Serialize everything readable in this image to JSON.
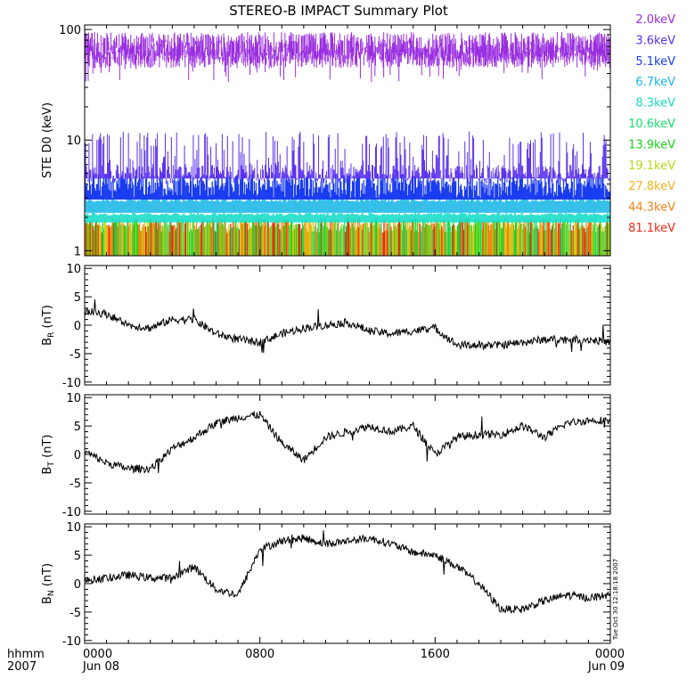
{
  "title": "STEREO-B IMPACT Summary Plot",
  "timestamp": "Tue Oct 30 12:18:18 2007",
  "xaxis": {
    "corner_label_1": "hhmm",
    "corner_label_2": "2007",
    "ticks": [
      {
        "hour": 0,
        "label": "0000",
        "date": "Jun 08"
      },
      {
        "hour": 8,
        "label": "0800",
        "date": ""
      },
      {
        "hour": 16,
        "label": "1600",
        "date": ""
      },
      {
        "hour": 24,
        "label": "0000",
        "date": "Jun 09"
      }
    ],
    "range_hours": [
      0,
      24
    ]
  },
  "chart_data": [
    {
      "type": "line",
      "name": "ste-d0",
      "ylabel": "STE D0 (keV)",
      "yscale": "log",
      "ylim": [
        0.9,
        110
      ],
      "ytick_labels": [
        "1",
        "10",
        "100"
      ],
      "ytick_values": [
        1,
        10,
        100
      ],
      "legend_placement": "right",
      "series": [
        {
          "name": "2.0keV",
          "color": "#9a2fe0",
          "level_range": [
            40,
            100
          ]
        },
        {
          "name": "3.6keV",
          "color": "#5a2ff0",
          "level_range": [
            4,
            12
          ]
        },
        {
          "name": "5.1keV",
          "color": "#1a3cf0",
          "level_range": [
            3,
            5
          ]
        },
        {
          "name": "6.7keV",
          "color": "#17b6e6",
          "level_range": [
            2.2,
            3
          ]
        },
        {
          "name": "8.3keV",
          "color": "#13dcc8",
          "level_range": [
            1.8,
            2.2
          ]
        },
        {
          "name": "10.6keV",
          "color": "#12e06a",
          "level_range": [
            1,
            2
          ]
        },
        {
          "name": "13.9keV",
          "color": "#1cd41c",
          "level_range": [
            1,
            2
          ]
        },
        {
          "name": "19.1keV",
          "color": "#b8d814",
          "level_range": [
            1,
            2
          ]
        },
        {
          "name": "27.8keV",
          "color": "#f0b41a",
          "level_range": [
            1,
            2
          ]
        },
        {
          "name": "44.3keV",
          "color": "#f08418",
          "level_range": [
            1,
            2
          ]
        },
        {
          "name": "81.1keV",
          "color": "#f02a12",
          "level_range": [
            1,
            2
          ]
        }
      ]
    },
    {
      "type": "line",
      "name": "br",
      "ylabel_main": "B",
      "ylabel_sub": "R",
      "ylabel_unit": "(nT)",
      "ylim": [
        -10.5,
        10.5
      ],
      "ytick_values": [
        -10,
        -5,
        0,
        5,
        10
      ],
      "series": [
        {
          "color": "#000000",
          "hours": [
            0,
            1,
            2,
            3,
            4,
            5,
            6,
            7,
            8,
            9,
            10,
            11,
            12,
            13,
            14,
            15,
            16,
            17,
            18,
            19,
            20,
            21,
            22,
            23,
            24
          ],
          "values": [
            2.5,
            2,
            0,
            -0.5,
            1,
            1,
            -1.5,
            -2.5,
            -3,
            -1.5,
            -0.5,
            0,
            0.5,
            -1,
            -1.5,
            -1,
            -0.5,
            -3.5,
            -3.5,
            -3.5,
            -3,
            -2.5,
            -2.5,
            -2.5,
            -3
          ]
        }
      ]
    },
    {
      "type": "line",
      "name": "bt",
      "ylabel_main": "B",
      "ylabel_sub": "T",
      "ylabel_unit": "(nT)",
      "ylim": [
        -10.5,
        10.5
      ],
      "ytick_values": [
        -10,
        -5,
        0,
        5,
        10
      ],
      "series": [
        {
          "color": "#000000",
          "hours": [
            0,
            1,
            2,
            3,
            4,
            5,
            6,
            7,
            8,
            9,
            10,
            11,
            12,
            13,
            14,
            15,
            16,
            17,
            18,
            19,
            20,
            21,
            22,
            23,
            24
          ],
          "values": [
            0.5,
            -1.5,
            -2.5,
            -2.5,
            1,
            3,
            5.5,
            6.5,
            7,
            2,
            -1,
            3,
            4,
            5,
            4,
            5,
            0,
            3,
            3.5,
            3.5,
            5,
            3,
            5.5,
            6,
            6
          ]
        }
      ]
    },
    {
      "type": "line",
      "name": "bn",
      "ylabel_main": "B",
      "ylabel_sub": "N",
      "ylabel_unit": "(nT)",
      "ylim": [
        -10.5,
        10.5
      ],
      "ytick_values": [
        -10,
        -5,
        0,
        5,
        10
      ],
      "series": [
        {
          "color": "#000000",
          "hours": [
            0,
            1,
            2,
            3,
            4,
            5,
            6,
            7,
            8,
            9,
            10,
            11,
            12,
            13,
            14,
            15,
            16,
            17,
            18,
            19,
            20,
            21,
            22,
            23,
            24
          ],
          "values": [
            0.5,
            1,
            1.5,
            1,
            1,
            3,
            -1,
            -2,
            6,
            7.5,
            8,
            7,
            7.5,
            8,
            7,
            5.5,
            5,
            3,
            0,
            -4.5,
            -4.5,
            -3,
            -2,
            -2.5,
            -2
          ]
        }
      ]
    }
  ]
}
